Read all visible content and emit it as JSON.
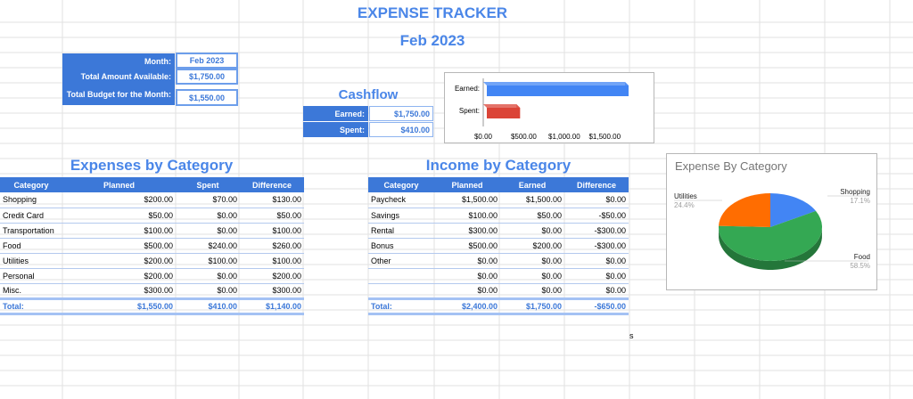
{
  "header": {
    "title": "EXPENSE TRACKER",
    "subtitle": "Feb 2023"
  },
  "summary": {
    "month_label": "Month:",
    "month_value": "Feb 2023",
    "available_label": "Total Amount Available:",
    "available_value": "$1,750.00",
    "budget_label": "Total Budget for the Month:",
    "budget_value": "$1,550.00"
  },
  "cashflow": {
    "title": "Cashflow",
    "earned_label": "Earned:",
    "earned_value": "$1,750.00",
    "spent_label": "Spent:",
    "spent_value": "$410.00"
  },
  "expenses": {
    "title": "Expenses by Category",
    "headers": [
      "Category",
      "Planned",
      "Spent",
      "Difference"
    ],
    "rows": [
      [
        "Shopping",
        "$200.00",
        "$70.00",
        "$130.00"
      ],
      [
        "Credit Card",
        "$50.00",
        "$0.00",
        "$50.00"
      ],
      [
        "Transportation",
        "$100.00",
        "$0.00",
        "$100.00"
      ],
      [
        "Food",
        "$500.00",
        "$240.00",
        "$260.00"
      ],
      [
        "Utilities",
        "$200.00",
        "$100.00",
        "$100.00"
      ],
      [
        "Personal",
        "$200.00",
        "$0.00",
        "$200.00"
      ],
      [
        "Misc.",
        "$300.00",
        "$0.00",
        "$300.00"
      ]
    ],
    "total": [
      "Total:",
      "$1,550.00",
      "$410.00",
      "$1,140.00"
    ]
  },
  "income": {
    "title": "Income by Category",
    "headers": [
      "Category",
      "Planned",
      "Earned",
      "Difference"
    ],
    "rows": [
      [
        "Paycheck",
        "$1,500.00",
        "$1,500.00",
        "$0.00"
      ],
      [
        "Savings",
        "$100.00",
        "$50.00",
        "-$50.00"
      ],
      [
        "Rental",
        "$300.00",
        "$0.00",
        "-$300.00"
      ],
      [
        "Bonus",
        "$500.00",
        "$200.00",
        "-$300.00"
      ],
      [
        "Other",
        "$0.00",
        "$0.00",
        "$0.00"
      ],
      [
        "",
        "$0.00",
        "$0.00",
        "$0.00"
      ],
      [
        "",
        "$0.00",
        "$0.00",
        "$0.00"
      ]
    ],
    "total": [
      "Total:",
      "$2,400.00",
      "$1,750.00",
      "-$650.00"
    ]
  },
  "stray_cell_text": "s",
  "colors": {
    "accent": "#3c78d8",
    "title": "#4a86e8",
    "earned": "#4285f4",
    "spent": "#db4437",
    "food": "#34a853",
    "utilities": "#ff6d01"
  },
  "chart_data": [
    {
      "type": "bar",
      "orientation": "horizontal",
      "categories": [
        "Earned:",
        "Spent:"
      ],
      "values": [
        1750,
        410
      ],
      "bar_colors": [
        "#4285f4",
        "#db4437"
      ],
      "xlim": [
        0,
        1750
      ],
      "ticks": [
        0,
        500,
        1000,
        1500
      ],
      "tick_labels": [
        "$0.00",
        "$500.00",
        "$1,000.00",
        "$1,500.00"
      ],
      "style": "3d"
    },
    {
      "type": "pie",
      "title": "Expense By Category",
      "style": "3d",
      "slices": [
        {
          "label": "Shopping",
          "percent": "17.1%",
          "value": 17.1,
          "color": "#4285f4"
        },
        {
          "label": "Food",
          "percent": "58.5%",
          "value": 58.5,
          "color": "#34a853"
        },
        {
          "label": "Utilities",
          "percent": "24.4%",
          "value": 24.4,
          "color": "#ff6d01"
        }
      ]
    }
  ]
}
